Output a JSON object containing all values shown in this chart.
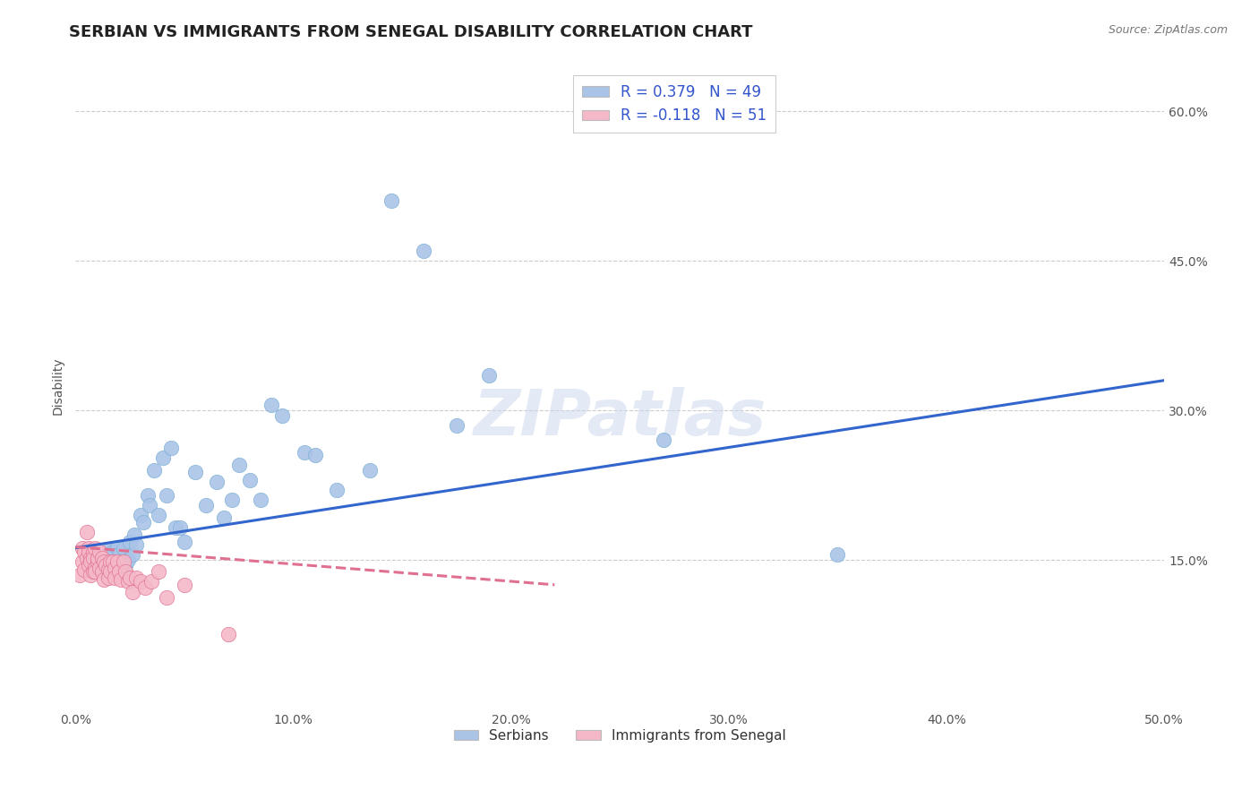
{
  "title": "SERBIAN VS IMMIGRANTS FROM SENEGAL DISABILITY CORRELATION CHART",
  "source": "Source: ZipAtlas.com",
  "ylabel": "Disability",
  "xlim": [
    0.0,
    0.5
  ],
  "ylim": [
    0.0,
    0.65
  ],
  "xticks": [
    0.0,
    0.1,
    0.2,
    0.3,
    0.4,
    0.5
  ],
  "xticklabels": [
    "0.0%",
    "10.0%",
    "20.0%",
    "30.0%",
    "40.0%",
    "50.0%"
  ],
  "yticks": [
    0.15,
    0.3,
    0.45,
    0.6
  ],
  "yticklabels": [
    "15.0%",
    "30.0%",
    "45.0%",
    "60.0%"
  ],
  "grid_color": "#cccccc",
  "background_color": "#ffffff",
  "watermark": "ZIPatlas",
  "legend_title_color": "#3355cc",
  "series": [
    {
      "name": "Serbians",
      "color": "#aac4e8",
      "marker_edge": "#7bafd4",
      "R": 0.379,
      "N": 49,
      "line_color": "#3366cc",
      "line_style": "solid",
      "points_x": [
        0.01,
        0.012,
        0.013,
        0.015,
        0.015,
        0.017,
        0.018,
        0.019,
        0.02,
        0.021,
        0.022,
        0.023,
        0.024,
        0.025,
        0.026,
        0.027,
        0.028,
        0.03,
        0.031,
        0.033,
        0.034,
        0.036,
        0.038,
        0.04,
        0.042,
        0.044,
        0.046,
        0.048,
        0.05,
        0.055,
        0.06,
        0.065,
        0.068,
        0.072,
        0.075,
        0.08,
        0.085,
        0.09,
        0.095,
        0.105,
        0.11,
        0.12,
        0.135,
        0.145,
        0.16,
        0.175,
        0.19,
        0.27,
        0.35
      ],
      "points_y": [
        0.155,
        0.14,
        0.148,
        0.16,
        0.152,
        0.158,
        0.148,
        0.163,
        0.155,
        0.148,
        0.162,
        0.145,
        0.15,
        0.168,
        0.155,
        0.175,
        0.165,
        0.195,
        0.188,
        0.215,
        0.205,
        0.24,
        0.195,
        0.252,
        0.215,
        0.262,
        0.182,
        0.182,
        0.168,
        0.238,
        0.205,
        0.228,
        0.192,
        0.21,
        0.245,
        0.23,
        0.21,
        0.305,
        0.295,
        0.258,
        0.255,
        0.22,
        0.24,
        0.51,
        0.46,
        0.285,
        0.335,
        0.27,
        0.155
      ],
      "trend_x": [
        0.0,
        0.5
      ],
      "trend_y": [
        0.162,
        0.33
      ]
    },
    {
      "name": "Immigrants from Senegal",
      "color": "#f4b8c8",
      "marker_edge": "#e07090",
      "R": -0.118,
      "N": 51,
      "line_color": "#e07090",
      "line_style": "dashed",
      "points_x": [
        0.002,
        0.003,
        0.003,
        0.004,
        0.004,
        0.005,
        0.005,
        0.006,
        0.006,
        0.006,
        0.007,
        0.007,
        0.007,
        0.008,
        0.008,
        0.008,
        0.009,
        0.009,
        0.009,
        0.01,
        0.01,
        0.011,
        0.011,
        0.012,
        0.012,
        0.013,
        0.013,
        0.014,
        0.015,
        0.015,
        0.016,
        0.016,
        0.017,
        0.018,
        0.018,
        0.019,
        0.02,
        0.021,
        0.022,
        0.023,
        0.024,
        0.025,
        0.026,
        0.028,
        0.03,
        0.032,
        0.035,
        0.038,
        0.042,
        0.05,
        0.07
      ],
      "points_y": [
        0.135,
        0.162,
        0.148,
        0.158,
        0.14,
        0.178,
        0.152,
        0.145,
        0.162,
        0.158,
        0.152,
        0.148,
        0.135,
        0.158,
        0.138,
        0.152,
        0.162,
        0.142,
        0.138,
        0.148,
        0.152,
        0.142,
        0.158,
        0.152,
        0.138,
        0.148,
        0.13,
        0.145,
        0.14,
        0.132,
        0.148,
        0.138,
        0.148,
        0.142,
        0.132,
        0.148,
        0.138,
        0.13,
        0.148,
        0.138,
        0.128,
        0.132,
        0.118,
        0.132,
        0.128,
        0.122,
        0.128,
        0.138,
        0.112,
        0.125,
        0.075
      ],
      "trend_x": [
        0.0,
        0.22
      ],
      "trend_y": [
        0.163,
        0.125
      ]
    }
  ],
  "legend_entries": [
    {
      "label": "R = 0.379   N = 49",
      "color": "#aac4e8"
    },
    {
      "label": "R = -0.118   N = 51",
      "color": "#f4b8c8"
    }
  ],
  "bottom_legend": [
    {
      "label": "Serbians",
      "color": "#aac4e8"
    },
    {
      "label": "Immigrants from Senegal",
      "color": "#f4b8c8"
    }
  ],
  "title_fontsize": 13,
  "axis_label_fontsize": 10,
  "tick_fontsize": 10,
  "watermark_fontsize": 52,
  "watermark_color": "#ccd8ee",
  "watermark_alpha": 0.55
}
